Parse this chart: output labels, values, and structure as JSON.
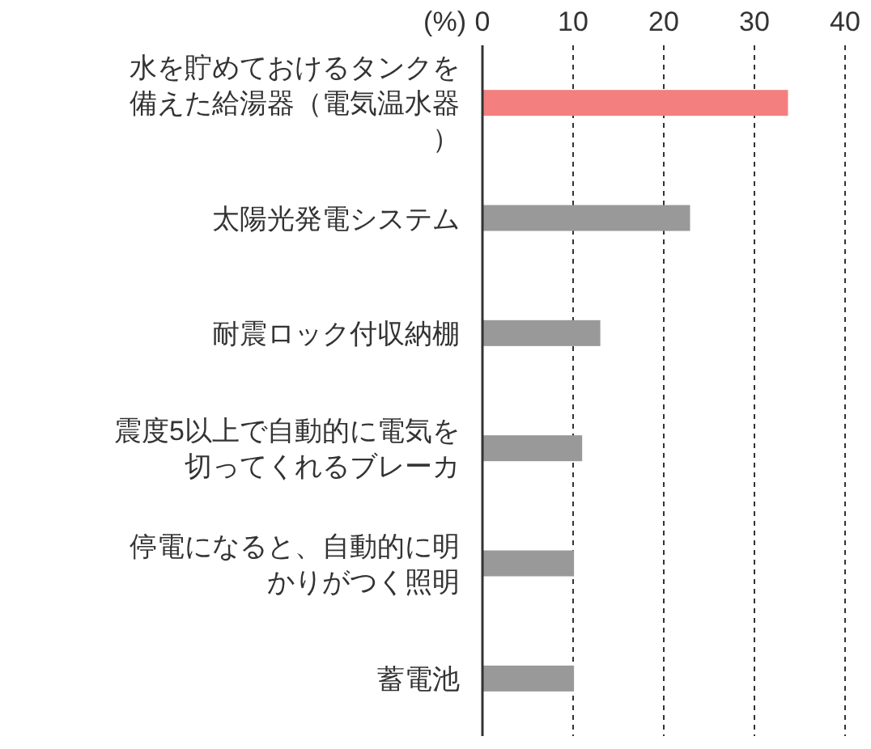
{
  "chart_data": {
    "type": "bar",
    "orientation": "horizontal",
    "xlabel": "(%)",
    "categories": [
      "水を貯めておけるタンクを備えた給湯器（電気温水器）",
      "太陽光発電システム",
      "耐震ロック付収納棚",
      "震度5以上で自動的に電気を切ってくれるブレーカ",
      "停電になると、自動的に明かりがつく照明",
      "蓄電池"
    ],
    "values": [
      33.7,
      22.9,
      13.0,
      11.0,
      10.1,
      10.1
    ],
    "colors": [
      "#f47f7f",
      "#999999",
      "#999999",
      "#999999",
      "#999999",
      "#999999"
    ],
    "xlim": [
      0,
      40
    ],
    "xticks": [
      0,
      10,
      20,
      30,
      40
    ],
    "grid": "x"
  }
}
